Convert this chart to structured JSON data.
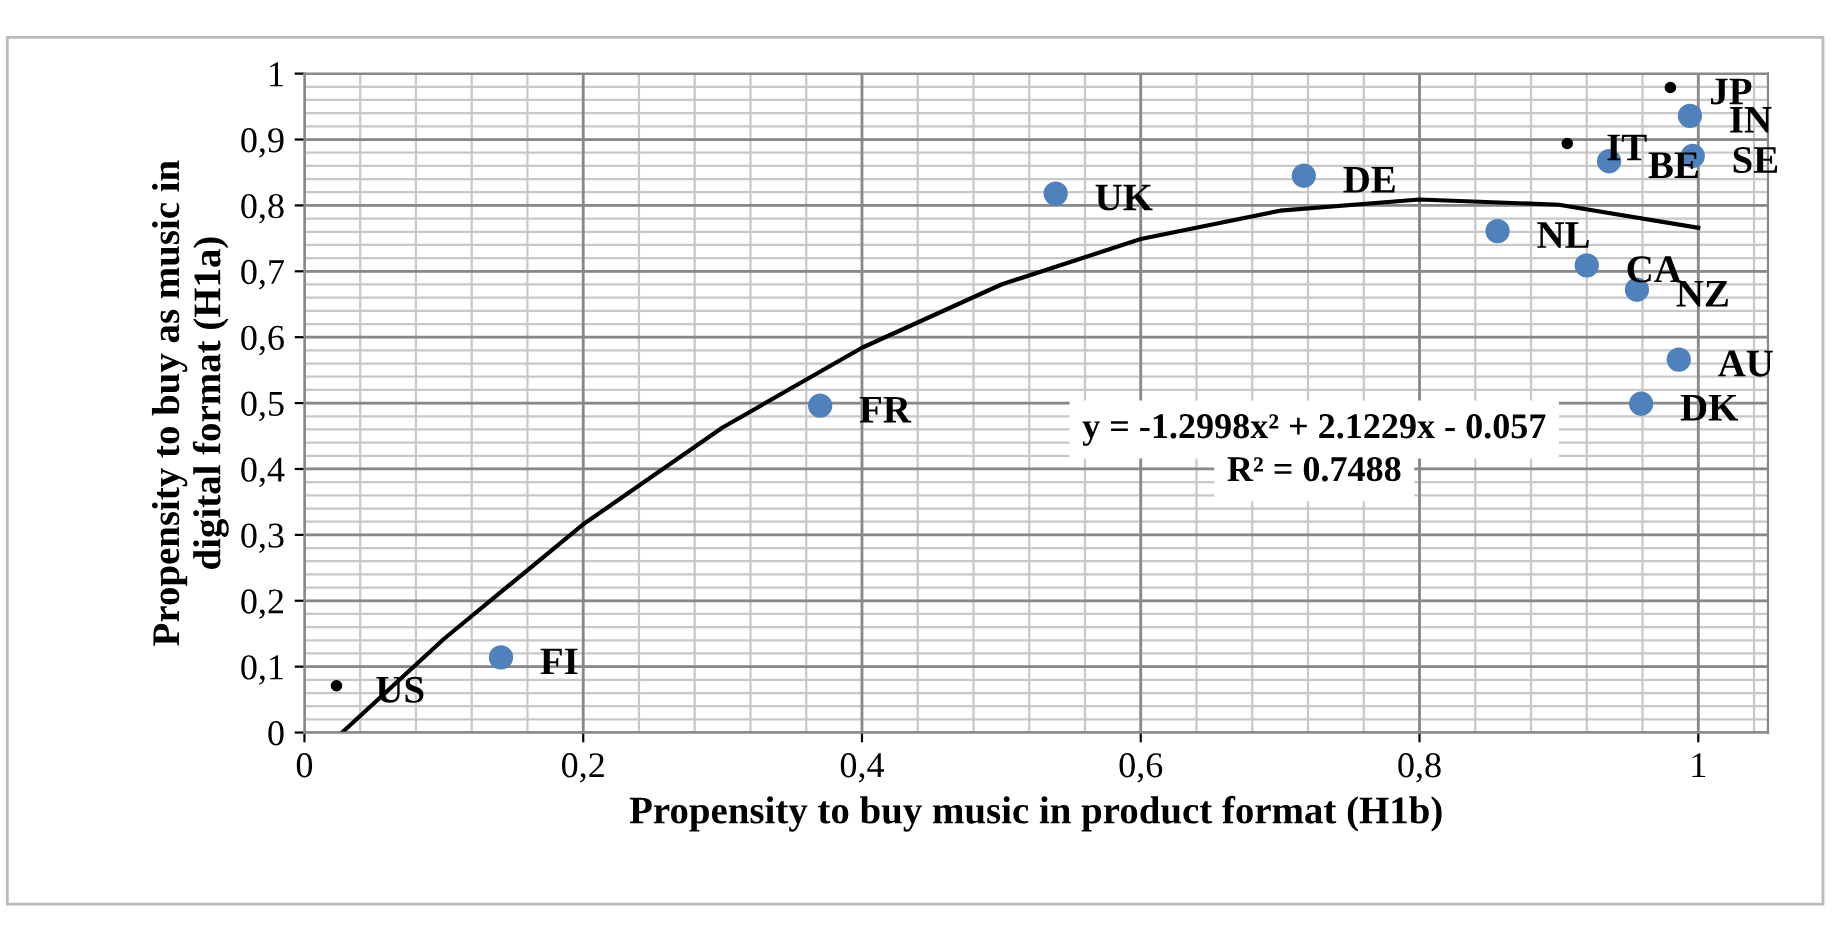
{
  "chart_data": {
    "type": "scatter",
    "xlabel": "Propensity to buy music in product format (H1b)",
    "ylabel": "Propensity to buy as music in\ndigital format (H1a)",
    "xlim": [
      0,
      1.05
    ],
    "ylim": [
      0,
      1
    ],
    "xticks": [
      {
        "value": 0,
        "label": "0"
      },
      {
        "value": 0.2,
        "label": "0,2"
      },
      {
        "value": 0.4,
        "label": "0,4"
      },
      {
        "value": 0.6,
        "label": "0,6"
      },
      {
        "value": 0.8,
        "label": "0,8"
      },
      {
        "value": 1,
        "label": "1"
      }
    ],
    "yticks": [
      {
        "value": 0,
        "label": "0"
      },
      {
        "value": 0.1,
        "label": "0,1"
      },
      {
        "value": 0.2,
        "label": "0,2"
      },
      {
        "value": 0.3,
        "label": "0,3"
      },
      {
        "value": 0.4,
        "label": "0,4"
      },
      {
        "value": 0.5,
        "label": "0,5"
      },
      {
        "value": 0.6,
        "label": "0,6"
      },
      {
        "value": 0.7,
        "label": "0,7"
      },
      {
        "value": 0.8,
        "label": "0,8"
      },
      {
        "value": 0.9,
        "label": "0,9"
      },
      {
        "value": 1,
        "label": "1"
      }
    ],
    "grid": true,
    "legend": false,
    "marker": "circle",
    "series": [
      {
        "name": "US",
        "color": "#000000",
        "x": [
          0.023
        ],
        "values": [
          0.071
        ]
      },
      {
        "name": "FI",
        "color": "#4f81bd",
        "x": [
          0.141
        ],
        "values": [
          0.114
        ]
      },
      {
        "name": "FR",
        "color": "#4f81bd",
        "x": [
          0.37
        ],
        "values": [
          0.496
        ]
      },
      {
        "name": "UK",
        "color": "#4f81bd",
        "x": [
          0.539
        ],
        "values": [
          0.818
        ]
      },
      {
        "name": "DE",
        "color": "#4f81bd",
        "x": [
          0.717
        ],
        "values": [
          0.845
        ]
      },
      {
        "name": "JP",
        "color": "#000000",
        "x": [
          0.98
        ],
        "values": [
          0.979
        ]
      },
      {
        "name": "IN",
        "color": "#4f81bd",
        "x": [
          0.994
        ],
        "values": [
          0.936
        ]
      },
      {
        "name": "IT",
        "color": "#000000",
        "x": [
          0.906
        ],
        "values": [
          0.894
        ]
      },
      {
        "name": "BE",
        "color": "#4f81bd",
        "x": [
          0.936
        ],
        "values": [
          0.867
        ]
      },
      {
        "name": "SE",
        "color": "#4f81bd",
        "x": [
          0.996
        ],
        "values": [
          0.875
        ]
      },
      {
        "name": "NL",
        "color": "#4f81bd",
        "x": [
          0.856
        ],
        "values": [
          0.761
        ]
      },
      {
        "name": "CA",
        "color": "#4f81bd",
        "x": [
          0.92
        ],
        "values": [
          0.709
        ]
      },
      {
        "name": "NZ",
        "color": "#4f81bd",
        "x": [
          0.956
        ],
        "values": [
          0.672
        ]
      },
      {
        "name": "AU",
        "color": "#4f81bd",
        "x": [
          0.986
        ],
        "values": [
          0.566
        ]
      },
      {
        "name": "DK",
        "color": "#4f81bd",
        "x": [
          0.959
        ],
        "values": [
          0.499
        ]
      },
      {
        "type": "line",
        "color": "#000000",
        "line_style": "solid",
        "marker": "none",
        "x": [
          0.027,
          0.1,
          0.2,
          0.3,
          0.4,
          0.5,
          0.6,
          0.7,
          0.8,
          0.9,
          1.0
        ],
        "values": [
          0,
          0.142,
          0.316,
          0.463,
          0.584,
          0.68,
          0.749,
          0.792,
          0.809,
          0.801,
          0.766
        ]
      }
    ],
    "annotations": [
      "y = -1.2998x² + 2.1229x - 0.057",
      "R² = 0.7488"
    ]
  }
}
